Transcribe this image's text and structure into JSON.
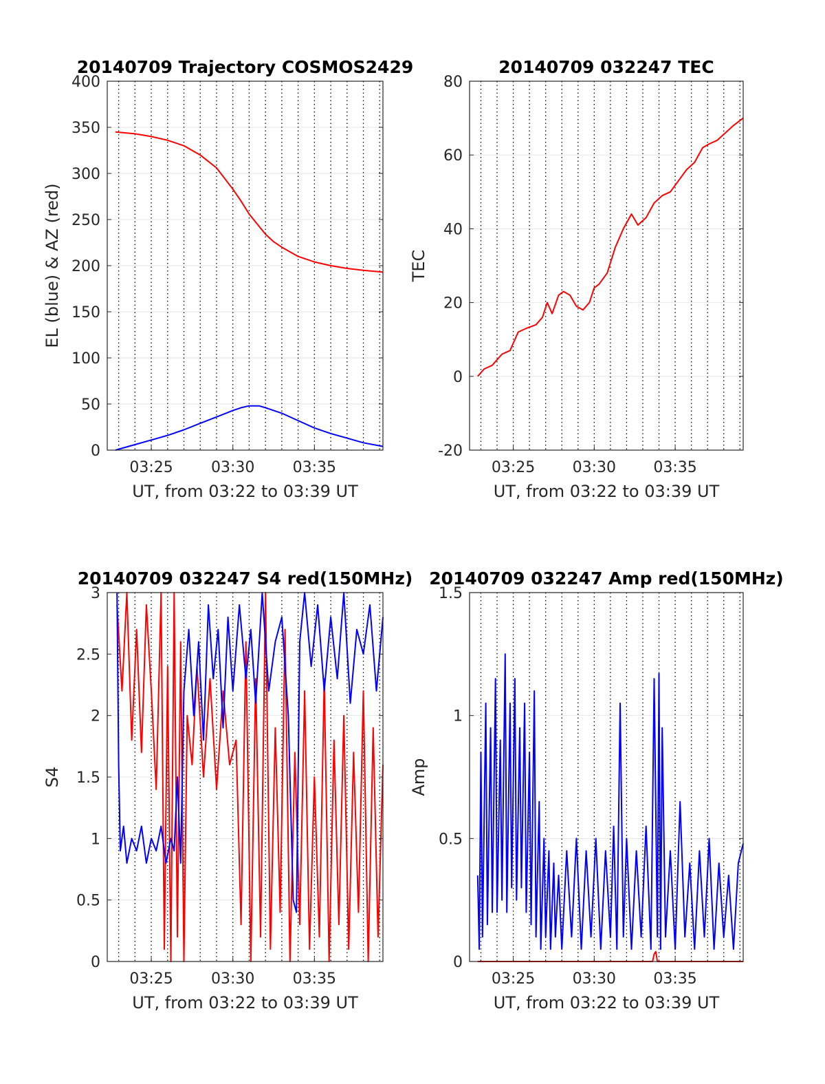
{
  "figure": {
    "background": "#ffffff"
  },
  "chart_data": [
    {
      "id": "trajectory",
      "type": "line",
      "title": "20140709 Trajectory COSMOS2429",
      "xlabel": "UT, from 03:22 to 03:39 UT",
      "ylabel": "EL (blue) & AZ (red)",
      "x_unit": "minutes of hour 03 UT",
      "xlim": [
        22.3,
        39.2
      ],
      "ylim": [
        0,
        400
      ],
      "yticks": [
        "0",
        "50",
        "100",
        "150",
        "200",
        "250",
        "300",
        "350",
        "400"
      ],
      "xticks": [
        {
          "value": 25,
          "label": "03:25"
        },
        {
          "value": 30,
          "label": "03:30"
        },
        {
          "value": 35,
          "label": "03:35"
        }
      ],
      "grid": {
        "vertical": "dotted",
        "horizontal": "light"
      },
      "series": [
        {
          "color": "#ff0000",
          "x": [
            22.8,
            24,
            25,
            26,
            27,
            28,
            29,
            30,
            30.5,
            31,
            31.5,
            32,
            32.5,
            33,
            34,
            35,
            36,
            37,
            38,
            39.2
          ],
          "y": [
            345,
            343,
            340,
            336,
            330,
            320,
            306,
            283,
            270,
            256,
            245,
            234,
            226,
            220,
            210,
            204,
            200,
            197,
            195,
            193
          ]
        },
        {
          "color": "#0000ff",
          "x": [
            22.8,
            24,
            25,
            26,
            27,
            28,
            29,
            30,
            30.5,
            31,
            31.3,
            31.6,
            32,
            33,
            34,
            35,
            36,
            37,
            38,
            39.2
          ],
          "y": [
            0,
            6,
            11,
            16,
            22,
            29,
            36,
            43,
            46,
            48,
            48,
            48,
            46,
            40,
            32,
            24,
            18,
            13,
            8,
            4
          ]
        }
      ]
    },
    {
      "id": "tec",
      "type": "line",
      "title": "20140709 032247 TEC",
      "xlabel": "UT, from 03:22 to 03:39 UT",
      "ylabel": "TEC",
      "x_unit": "minutes of hour 03 UT",
      "xlim": [
        22.3,
        39.2
      ],
      "ylim": [
        -20,
        80
      ],
      "yticks": [
        "-20",
        "0",
        "20",
        "40",
        "60",
        "80"
      ],
      "xticks": [
        {
          "value": 25,
          "label": "03:25"
        },
        {
          "value": 30,
          "label": "03:30"
        },
        {
          "value": 35,
          "label": "03:35"
        }
      ],
      "grid": {
        "vertical": "dotted",
        "horizontal": "light"
      },
      "series": [
        {
          "color": "#ff0000",
          "x": [
            22.8,
            23.2,
            23.7,
            24.3,
            24.8,
            25.3,
            25.8,
            26.4,
            26.8,
            27.1,
            27.4,
            27.8,
            28.1,
            28.5,
            28.9,
            29.3,
            29.7,
            30.0,
            30.3,
            30.8,
            31.3,
            31.8,
            32.3,
            32.7,
            33.2,
            33.7,
            34.2,
            34.7,
            35.2,
            35.7,
            36.2,
            36.7,
            37.1,
            37.6,
            38.1,
            38.6,
            39.2
          ],
          "y": [
            0,
            2,
            3,
            6,
            7,
            12,
            13,
            14,
            16,
            20,
            17,
            22,
            23,
            22,
            19,
            18,
            20,
            24,
            25,
            28,
            35,
            40,
            44,
            41,
            43,
            47,
            49,
            50,
            53,
            56,
            58,
            62,
            63,
            64,
            66,
            68,
            70
          ]
        }
      ]
    },
    {
      "id": "s4",
      "type": "line",
      "title": "20140709 032247 S4 red(150MHz)",
      "xlabel": "UT, from 03:22 to 03:39 UT",
      "ylabel": "S4",
      "x_unit": "minutes of hour 03 UT",
      "xlim": [
        22.3,
        39.2
      ],
      "ylim": [
        0,
        3
      ],
      "yticks": [
        "0",
        "0.5",
        "1",
        "1.5",
        "2",
        "2.5",
        "3"
      ],
      "xticks": [
        {
          "value": 25,
          "label": "03:25"
        },
        {
          "value": 30,
          "label": "03:30"
        },
        {
          "value": 35,
          "label": "03:35"
        }
      ],
      "grid": {
        "vertical": "dotted",
        "horizontal": "light"
      },
      "series": [
        {
          "color": "#ff0000",
          "x": [
            22.9,
            23.2,
            23.5,
            23.8,
            24.1,
            24.4,
            24.7,
            25.0,
            25.3,
            25.6,
            25.8,
            26.0,
            26.2,
            26.4,
            26.6,
            26.8,
            27.0,
            27.2,
            27.5,
            27.8,
            28.2,
            28.6,
            29.0,
            29.4,
            29.8,
            30.2,
            30.5,
            30.8,
            31.1,
            31.4,
            31.7,
            32.0,
            32.3,
            32.6,
            32.9,
            33.2,
            33.5,
            33.8,
            34.1,
            34.4,
            34.7,
            35.0,
            35.3,
            35.6,
            35.9,
            36.2,
            36.5,
            36.8,
            37.1,
            37.4,
            37.7,
            38.0,
            38.3,
            38.6,
            38.9,
            39.2
          ],
          "y": [
            2.9,
            2.2,
            3.0,
            1.8,
            2.7,
            1.7,
            2.9,
            2.2,
            1.4,
            3.0,
            0.1,
            2.4,
            0.0,
            3.0,
            0.2,
            2.6,
            0.0,
            2.0,
            1.6,
            2.4,
            1.5,
            2.3,
            1.4,
            2.2,
            1.6,
            1.8,
            0.3,
            2.6,
            0.0,
            2.3,
            0.2,
            3.0,
            0.1,
            1.9,
            0.4,
            2.7,
            0.0,
            1.7,
            0.3,
            2.2,
            0.1,
            1.5,
            0.2,
            2.3,
            0.0,
            1.8,
            0.3,
            2.0,
            0.1,
            1.7,
            0.4,
            2.2,
            0.0,
            1.9,
            0.2,
            1.6
          ]
        },
        {
          "color": "#0000ff",
          "x": [
            22.9,
            23.0,
            23.1,
            23.3,
            23.5,
            23.8,
            24.1,
            24.4,
            24.7,
            25.0,
            25.3,
            25.6,
            25.9,
            26.2,
            26.4,
            26.6,
            26.8,
            27.0,
            27.3,
            27.6,
            27.9,
            28.2,
            28.5,
            28.8,
            29.1,
            29.4,
            29.7,
            30.0,
            30.4,
            30.8,
            31.1,
            31.4,
            31.8,
            32.2,
            32.6,
            33.0,
            33.4,
            33.7,
            33.9,
            34.1,
            34.4,
            34.8,
            35.2,
            35.6,
            36.0,
            36.4,
            36.8,
            37.2,
            37.6,
            38.0,
            38.4,
            38.8,
            39.2
          ],
          "y": [
            3.0,
            1.6,
            0.9,
            1.1,
            0.8,
            1.0,
            0.9,
            1.1,
            0.8,
            1.0,
            0.9,
            1.1,
            0.8,
            1.0,
            0.9,
            1.5,
            0.8,
            2.2,
            2.7,
            2.0,
            2.6,
            1.8,
            2.9,
            2.3,
            2.7,
            1.9,
            2.8,
            2.2,
            2.9,
            2.3,
            2.7,
            2.1,
            3.0,
            2.2,
            2.6,
            2.8,
            2.0,
            0.5,
            0.4,
            2.6,
            3.0,
            2.4,
            2.9,
            2.2,
            2.8,
            2.3,
            3.0,
            2.1,
            2.7,
            2.5,
            2.9,
            2.2,
            2.8
          ]
        }
      ]
    },
    {
      "id": "amp",
      "type": "line",
      "title": "20140709 032247 Amp red(150MHz)",
      "xlabel": "UT, from 03:22 to 03:39 UT",
      "ylabel": "Amp",
      "x_unit": "minutes of hour 03 UT",
      "xlim": [
        22.3,
        39.2
      ],
      "ylim": [
        0,
        1.5
      ],
      "yticks": [
        "0",
        "0.5",
        "1",
        "1.5"
      ],
      "xticks": [
        {
          "value": 25,
          "label": "03:25"
        },
        {
          "value": 30,
          "label": "03:30"
        },
        {
          "value": 35,
          "label": "03:35"
        }
      ],
      "grid": {
        "vertical": "dotted",
        "horizontal": "light"
      },
      "series": [
        {
          "color": "#ff0000",
          "x": [
            22.8,
            33.6,
            33.7,
            33.8,
            33.9,
            39.2
          ],
          "y": [
            0,
            0,
            0.03,
            0.04,
            0,
            0
          ]
        },
        {
          "color": "#0000ff",
          "x": [
            22.8,
            22.9,
            23.0,
            23.1,
            23.3,
            23.4,
            23.6,
            23.7,
            23.9,
            24.0,
            24.2,
            24.3,
            24.5,
            24.6,
            24.8,
            24.9,
            25.1,
            25.2,
            25.4,
            25.5,
            25.7,
            25.8,
            26.0,
            26.1,
            26.3,
            26.4,
            26.6,
            26.7,
            26.9,
            27.0,
            27.2,
            27.3,
            27.5,
            27.6,
            27.8,
            28.0,
            28.3,
            28.6,
            28.9,
            29.2,
            29.5,
            29.8,
            30.1,
            30.4,
            30.7,
            31.0,
            31.2,
            31.4,
            31.6,
            31.8,
            32.0,
            32.3,
            32.6,
            32.9,
            33.2,
            33.5,
            33.7,
            33.9,
            34.0,
            34.1,
            34.2,
            34.4,
            34.7,
            35.0,
            35.3,
            35.6,
            35.9,
            36.2,
            36.5,
            36.8,
            37.1,
            37.4,
            37.7,
            38.0,
            38.3,
            38.6,
            38.9,
            39.2
          ],
          "y": [
            0.35,
            0.05,
            0.85,
            0.1,
            1.05,
            0.15,
            0.95,
            0.2,
            1.15,
            0.2,
            0.9,
            0.25,
            1.25,
            0.2,
            1.05,
            0.3,
            1.15,
            0.25,
            0.95,
            0.3,
            1.05,
            0.2,
            0.85,
            0.15,
            1.1,
            0.1,
            0.65,
            0.05,
            0.5,
            0.1,
            0.45,
            0.05,
            0.4,
            0.1,
            0.35,
            0.05,
            0.45,
            0.1,
            0.5,
            0.05,
            0.45,
            0.1,
            0.5,
            0.05,
            0.45,
            0.1,
            0.55,
            0.05,
            1.05,
            0.1,
            0.5,
            0.05,
            0.45,
            0.1,
            0.55,
            0.05,
            1.15,
            0.1,
            1.17,
            0.05,
            0.95,
            0.1,
            0.45,
            0.05,
            0.65,
            0.1,
            0.4,
            0.05,
            0.45,
            0.1,
            0.5,
            0.05,
            0.4,
            0.1,
            0.35,
            0.05,
            0.4,
            0.48
          ]
        }
      ]
    }
  ]
}
